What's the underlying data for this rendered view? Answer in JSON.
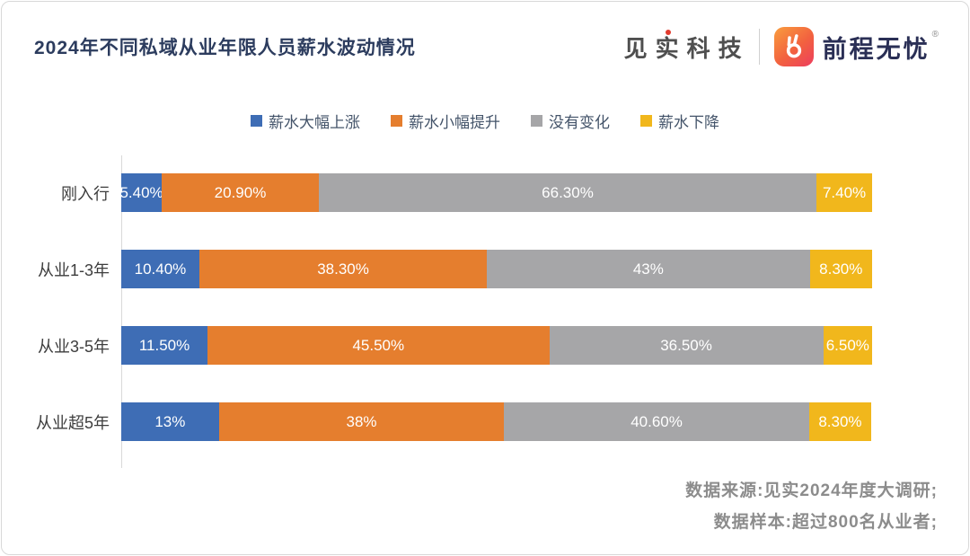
{
  "header": {
    "title": "2024年不同私域从业年限人员薪水波动情况",
    "brand_left": "见实科技",
    "brand_right": "前程无忧",
    "brand_right_mark": "®"
  },
  "chart_data": {
    "type": "bar",
    "orientation": "horizontal-stacked",
    "unit": "%",
    "xlim": [
      0,
      100
    ],
    "grid": false,
    "legend_position": "top",
    "categories": [
      "刚入行",
      "从业1-3年",
      "从业3-5年",
      "从业超5年"
    ],
    "series": [
      {
        "name": "薪水大幅上涨",
        "color": "#3e6db5",
        "values": [
          5.4,
          10.4,
          11.5,
          13
        ],
        "labels": [
          "5.40%",
          "10.40%",
          "11.50%",
          "13%"
        ]
      },
      {
        "name": "薪水小幅提升",
        "color": "#e57e2e",
        "values": [
          20.9,
          38.3,
          45.5,
          38
        ],
        "labels": [
          "20.90%",
          "38.30%",
          "45.50%",
          "38%"
        ]
      },
      {
        "name": "没有变化",
        "color": "#a6a6a8",
        "values": [
          66.3,
          43,
          36.5,
          40.6
        ],
        "labels": [
          "66.30%",
          "43%",
          "36.50%",
          "40.60%"
        ]
      },
      {
        "name": "薪水下降",
        "color": "#f1b71c",
        "values": [
          7.4,
          8.3,
          6.5,
          8.3
        ],
        "labels": [
          "7.40%",
          "8.30%",
          "6.50%",
          "8.30%"
        ]
      }
    ]
  },
  "source": {
    "line1": "数据来源:见实2024年度大调研;",
    "line2": "数据样本:超过800名从业者;"
  }
}
